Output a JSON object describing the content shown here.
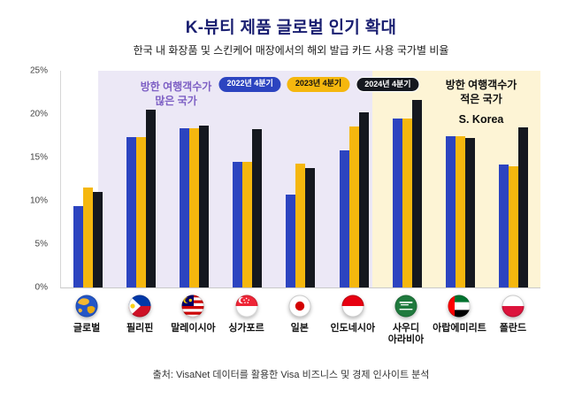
{
  "title": "K-뷰티 제품 글로벌 인기 확대",
  "subtitle": "한국 내 화장품 및 스킨케어 매장에서의 해외 발급 카드 사용 국가별 비율",
  "source": "출처: VisaNet 데이터를 활용한 Visa 비즈니스 및 경제 인사이트 분석",
  "annotations": {
    "left_region": "방한 여행객수가\n많은 국가",
    "right_region": "방한 여행객수가\n적은 국가",
    "s_korea": "S. Korea"
  },
  "colors": {
    "title_text": "#1a1f71",
    "bar_2022": "#2c44c0",
    "bar_2023": "#f5b70e",
    "bar_2024": "#15181f",
    "region_left_bg": "#ece8f6",
    "region_right_bg": "#fdf4d5",
    "annotation_left_text": "#7d5fc4"
  },
  "chart_data": {
    "type": "bar",
    "title": "K-뷰티 제품 글로벌 인기 확대",
    "subtitle": "한국 내 화장품 및 스킨케어 매장에서의 해외 발급 카드 사용 국가별 비율",
    "ylim": [
      0,
      25
    ],
    "yticks": [
      "0%",
      "5%",
      "10%",
      "15%",
      "20%",
      "25%"
    ],
    "grid": false,
    "legend_position": "top",
    "categories": [
      "글로벌",
      "필리핀",
      "말레이시아",
      "싱가포르",
      "일본",
      "인도네시아",
      "사우디 아라비아",
      "아랍에미리트",
      "폴란드"
    ],
    "series": [
      {
        "name": "2022년 4분기",
        "color": "#2c44c0",
        "text_color": "#ffffff",
        "values": [
          9.4,
          17.3,
          18.4,
          14.5,
          10.7,
          15.8,
          19.5,
          17.5,
          14.2
        ]
      },
      {
        "name": "2023년 4분기",
        "color": "#f5b70e",
        "text_color": "#111111",
        "values": [
          11.5,
          17.3,
          18.4,
          14.5,
          14.3,
          18.6,
          19.5,
          17.5,
          14.0
        ]
      },
      {
        "name": "2024년 4분기",
        "color": "#15181f",
        "text_color": "#ffffff",
        "values": [
          11.0,
          20.5,
          18.7,
          18.3,
          13.8,
          20.2,
          21.6,
          17.2,
          18.5
        ]
      }
    ],
    "region_annotations": [
      {
        "text": "방한 여행객수가 많은 국가",
        "covers": [
          "필리핀",
          "말레이시아",
          "싱가포르",
          "일본",
          "인도네시아"
        ]
      },
      {
        "text": "방한 여행객수가 적은 국가",
        "covers": [
          "사우디 아라비아",
          "아랍에미리트",
          "폴란드"
        ]
      },
      {
        "text": "S. Korea"
      }
    ]
  },
  "x_axis": {
    "items": [
      {
        "label": "글로벌",
        "icon": "globe-flag-icon"
      },
      {
        "label": "필리핀",
        "icon": "philippines-flag-icon"
      },
      {
        "label": "말레이시아",
        "icon": "malaysia-flag-icon"
      },
      {
        "label": "싱가포르",
        "icon": "singapore-flag-icon"
      },
      {
        "label": "일본",
        "icon": "japan-flag-icon"
      },
      {
        "label": "인도네시아",
        "icon": "indonesia-flag-icon"
      },
      {
        "label": "사우디\n아라비아",
        "icon": "saudi-arabia-flag-icon"
      },
      {
        "label": "아랍에미리트",
        "icon": "uae-flag-icon"
      },
      {
        "label": "폴란드",
        "icon": "poland-flag-icon"
      }
    ]
  }
}
